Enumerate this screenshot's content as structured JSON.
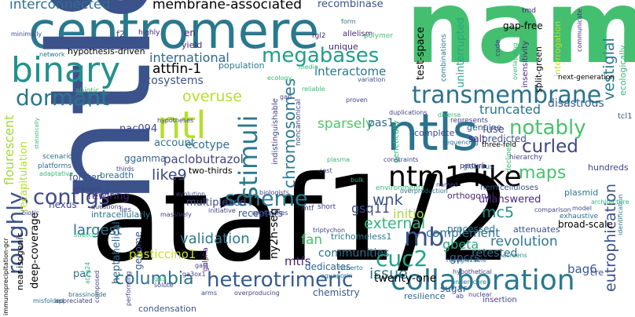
{
  "background": "#ffffff",
  "palette": {
    "navy": "#3b528b",
    "purple": "#482475",
    "indigo": "#414487",
    "teal": "#21918c",
    "bluegreen": "#2a788e",
    "green": "#35b779",
    "lime": "#90d743",
    "yellow": "#c8e020"
  },
  "words": [
    {
      "id": "nam",
      "text": "nam",
      "color": "#44bf70"
    },
    {
      "id": "centromere",
      "text": "centromere",
      "color": "#2a788e"
    },
    {
      "id": "ntl8",
      "text": "ntl8",
      "color": "#3b528b"
    },
    {
      "id": "ataf12",
      "text": "ataf1/2",
      "color": "#22a884"
    },
    {
      "id": "binary",
      "text": "binary",
      "color": "#21918c"
    },
    {
      "id": "ntls",
      "text": "ntls",
      "color": "#2c728e"
    },
    {
      "id": "ntl",
      "text": "ntl",
      "color": "#b5de2b"
    },
    {
      "id": "transmembrane",
      "text": "transmembrane",
      "color": "#2c728e"
    },
    {
      "id": "ntm1like",
      "text": "ntm1-like",
      "color": "#38598c"
    },
    {
      "id": "megabases",
      "text": "megabases",
      "color": "#1f9e89"
    },
    {
      "id": "dormant",
      "text": "dormant",
      "color": "#2a788e"
    },
    {
      "id": "interconnected",
      "text": "interconnected",
      "color": "#2c728e"
    },
    {
      "id": "membraneassociated",
      "text": "membrane-associated",
      "color": "#355f8d"
    },
    {
      "id": "recombinase",
      "text": "recombinase",
      "color": "#3b528b"
    },
    {
      "id": "international",
      "text": "international",
      "color": "#31688e"
    },
    {
      "id": "attfin1",
      "text": "attfin-1",
      "color": "#a8db34"
    },
    {
      "id": "overuse",
      "text": "overuse",
      "color": "#b5de2b"
    },
    {
      "id": "stimuli",
      "text": "stimuli",
      "color": "#2a788e"
    },
    {
      "id": "scheme",
      "text": "scheme",
      "color": "#287c8e"
    },
    {
      "id": "contigs",
      "text": "contigs",
      "color": "#3e4a89"
    },
    {
      "id": "roughly",
      "text": "roughly",
      "color": "#3b528b"
    },
    {
      "id": "notably",
      "text": "notably",
      "color": "#48c16e"
    },
    {
      "id": "curled",
      "text": "curled",
      "color": "#414487"
    },
    {
      "id": "truncated",
      "text": "truncated",
      "color": "#2c728e"
    },
    {
      "id": "disastrous",
      "text": "disastrous",
      "color": "#355f8d"
    },
    {
      "id": "sparsely",
      "text": "sparsely",
      "color": "#52c569"
    },
    {
      "id": "interactome",
      "text": "interactome",
      "color": "#2a788e"
    },
    {
      "id": "ecosystems",
      "text": "ecosystems",
      "color": "#3b528b"
    },
    {
      "id": "fkbp",
      "text": "fkbp",
      "color": "#34618d"
    },
    {
      "id": "chromosomes",
      "text": "chromosomes",
      "color": "#2a788e"
    },
    {
      "id": "maps",
      "text": "maps",
      "color": "#48c16e"
    },
    {
      "id": "collaboration",
      "text": "collaboration",
      "color": "#2a788e"
    },
    {
      "id": "heterotrimeric",
      "text": "heterotrimeric",
      "color": "#38598c"
    },
    {
      "id": "columbia",
      "text": "columbia",
      "color": "#2c728e"
    },
    {
      "id": "cuc2",
      "text": "cuc2",
      "color": "#20a386"
    },
    {
      "id": "mb",
      "text": "mb",
      "color": "#3b528b"
    },
    {
      "id": "like9",
      "text": "like9",
      "color": "#3e4a89"
    },
    {
      "id": "validation",
      "text": "validation",
      "color": "#2a788e"
    },
    {
      "id": "paclobutrazol",
      "text": "paclobutrazol",
      "color": "#414487"
    },
    {
      "id": "ecotype",
      "text": "ecotype",
      "color": "#2e6f8e"
    },
    {
      "id": "account",
      "text": "account",
      "color": "#2c728e"
    },
    {
      "id": "flourescent",
      "text": "flourescent",
      "color": "#a2da37"
    },
    {
      "id": "nac094",
      "text": "nac094",
      "color": "#3e4a89"
    },
    {
      "id": "ggamma",
      "text": "ggamma",
      "color": "#34618d"
    },
    {
      "id": "largest",
      "text": "largest",
      "color": "#2e6f8e"
    },
    {
      "id": "wnk",
      "text": "wnk",
      "color": "#3b528b"
    },
    {
      "id": "initio",
      "text": "initio",
      "color": "#a5db36"
    },
    {
      "id": "external",
      "text": "external",
      "color": "#31b57b"
    },
    {
      "id": "complement",
      "text": "complement",
      "color": "#2c728e"
    },
    {
      "id": "unanswered",
      "text": "unanswered",
      "color": "#482878"
    },
    {
      "id": "mc5",
      "text": "mc5",
      "color": "#21918c"
    },
    {
      "id": "revolution",
      "text": "revolution",
      "color": "#2a788e"
    },
    {
      "id": "gbeta",
      "text": "gbeta",
      "color": "#22a884"
    },
    {
      "id": "retested",
      "text": "retested",
      "color": "#2c728e"
    },
    {
      "id": "issue",
      "text": "issue",
      "color": "#2a788e"
    },
    {
      "id": "gpcrs",
      "text": "gpcrs",
      "color": "#38598c"
    },
    {
      "id": "twentyone",
      "text": "twenty-one",
      "color": "#3e4a89"
    },
    {
      "id": "communities",
      "text": "communities",
      "color": "#2e6f8e"
    },
    {
      "id": "mtfs",
      "text": "mtfs",
      "color": "#482475"
    },
    {
      "id": "dedicates",
      "text": "dedicates",
      "color": "#31688e"
    },
    {
      "id": "fan",
      "text": "fan",
      "color": "#48c16e"
    },
    {
      "id": "gsq11",
      "text": "gsq11",
      "color": "#3e4a89"
    },
    {
      "id": "pasticcino1",
      "text": "pasticcino1",
      "color": "#c8e020"
    },
    {
      "id": "deepcoverage",
      "text": "deep-coverage",
      "color": "#3b528b"
    },
    {
      "id": "heptahelical",
      "text": "heptahelical",
      "color": "#31688e"
    },
    {
      "id": "genome",
      "text": "genome",
      "color": "#3b528b"
    },
    {
      "id": "eutrophication",
      "text": "eutrophication",
      "color": "#3b528b"
    },
    {
      "id": "vestigial",
      "text": "vestigial",
      "color": "#2a788e"
    },
    {
      "id": "bag6",
      "text": "bag6",
      "color": "#38598c"
    },
    {
      "id": "condensation",
      "text": "condensation",
      "color": "#3b528b"
    },
    {
      "id": "uninterrupted",
      "text": "uninterrupted",
      "color": "#22a884"
    },
    {
      "id": "testspace",
      "text": "test-space",
      "color": "#3e4a89"
    },
    {
      "id": "unique",
      "text": "unique",
      "color": "#482475"
    },
    {
      "id": "gapfree",
      "text": "gap-free",
      "color": "#3b528b"
    },
    {
      "id": "hypothesisdriven",
      "text": "hypothesis-driven",
      "color": "#3b528b"
    },
    {
      "id": "represents",
      "text": "represents",
      "color": "#414487"
    },
    {
      "id": "interrogation",
      "text": "interrogation",
      "color": "#bddf26"
    },
    {
      "id": "splitgreen",
      "text": "split-green",
      "color": "#1fa088"
    },
    {
      "id": "insensitivity",
      "text": "insensitivity",
      "color": "#482878"
    },
    {
      "id": "nextgeneration",
      "text": "next-generation",
      "color": "#414487"
    },
    {
      "id": "ecologically",
      "text": "ecologically",
      "color": "#35b779"
    },
    {
      "id": "tcl1",
      "text": "tcl1",
      "color": "#3b528b"
    },
    {
      "id": "pas1",
      "text": "pas1",
      "color": "#31688e"
    },
    {
      "id": "genuine",
      "text": "genuine",
      "color": "#38598c"
    },
    {
      "id": "salt",
      "text": "salt",
      "color": "#482475"
    },
    {
      "id": "fuse",
      "text": "fuse",
      "color": "#3e4a89"
    },
    {
      "id": "complete",
      "text": "complete",
      "color": "#414487"
    },
    {
      "id": "predicted",
      "text": "predicted",
      "color": "#3b528b"
    },
    {
      "id": "genetically",
      "text": "genetically",
      "color": "#35b779"
    },
    {
      "id": "plasmid",
      "text": "plasmid",
      "color": "#2a788e"
    },
    {
      "id": "hundreds",
      "text": "hundreds",
      "color": "#414487"
    },
    {
      "id": "orthogonal",
      "text": "orthogonal",
      "color": "#482878"
    },
    {
      "id": "hemicelluloses",
      "text": "hemicelluloses",
      "color": "#3b528b"
    },
    {
      "id": "trichomeless1",
      "text": "trichomeless1",
      "color": "#2a788e"
    },
    {
      "id": "processed",
      "text": "processed",
      "color": "#2c728e"
    },
    {
      "id": "attenuates",
      "text": "attenuates",
      "color": "#3b528b"
    },
    {
      "id": "broadscale",
      "text": "broad-scale",
      "color": "#3e4a89"
    },
    {
      "id": "resilience",
      "text": "resilience",
      "color": "#31688e"
    },
    {
      "id": "sugar",
      "text": "sugar",
      "color": "#38598c"
    },
    {
      "id": "insertion",
      "text": "insertion",
      "color": "#414487"
    },
    {
      "id": "chemistry",
      "text": "chemistry",
      "color": "#38598c"
    },
    {
      "id": "multiplexed",
      "text": "multiplexed",
      "color": "#3e4a89"
    },
    {
      "id": "receptors",
      "text": "receptors",
      "color": "#3b528b"
    },
    {
      "id": "nexus",
      "text": "nexus",
      "color": "#414487"
    },
    {
      "id": "caspase",
      "text": "caspase",
      "color": "#3b528b"
    },
    {
      "id": "breadth",
      "text": "breadth",
      "color": "#2e6f8e"
    },
    {
      "id": "forster",
      "text": "forster",
      "color": "#3b528b"
    },
    {
      "id": "rewiring",
      "text": "rewiring",
      "color": "#482878"
    },
    {
      "id": "intracellularly",
      "text": "intracellularly",
      "color": "#2c728e"
    },
    {
      "id": "recapitulation",
      "text": "recapitulation",
      "color": "#b5de2b"
    },
    {
      "id": "nearisogenic",
      "text": "near-isogenic",
      "color": "#2e6f8e"
    },
    {
      "id": "immunoprecip",
      "text": "immunoprecipitation-gcr",
      "color": "#3e4a89"
    },
    {
      "id": "pac",
      "text": "pac",
      "color": "#2c728e"
    },
    {
      "id": "abiotic",
      "text": "abiotic",
      "color": "#35b779"
    },
    {
      "id": "network",
      "text": "network",
      "color": "#2e6f8e"
    },
    {
      "id": "en",
      "text": "en",
      "color": "#482475"
    },
    {
      "id": "yield",
      "text": "yield",
      "color": "#482878"
    },
    {
      "id": "f2",
      "text": "f2",
      "color": "#414487"
    },
    {
      "id": "population",
      "text": "population",
      "color": "#2a788e"
    },
    {
      "id": "ecology",
      "text": "ecology",
      "color": "#35b779"
    },
    {
      "id": "highly",
      "text": "highly",
      "color": "#482475"
    },
    {
      "id": "minimally",
      "text": "minimally",
      "color": "#3e4a89"
    },
    {
      "id": "tmd",
      "text": "tmd",
      "color": "#482475"
    },
    {
      "id": "form",
      "text": "form",
      "color": "#2a788e"
    },
    {
      "id": "allelism",
      "text": "allelism",
      "color": "#482878"
    },
    {
      "id": "polymer",
      "text": "polymer",
      "color": "#48c16e"
    },
    {
      "id": "rgl2",
      "text": "rgl2",
      "color": "#482475"
    },
    {
      "id": "combinations",
      "text": "combinations",
      "color": "#2a788e"
    },
    {
      "id": "code",
      "text": "code",
      "color": "#414487"
    },
    {
      "id": "communicate",
      "text": "communicate",
      "color": "#482878"
    },
    {
      "id": "variation",
      "text": "variation",
      "color": "#3b528b"
    },
    {
      "id": "overlapping",
      "text": "overlapping",
      "color": "#35b779"
    },
    {
      "id": "duplications",
      "text": "duplications",
      "color": "#414487"
    },
    {
      "id": "proven",
      "text": "proven",
      "color": "#414487"
    },
    {
      "id": "diverse",
      "text": "diverse",
      "color": "#35b779"
    },
    {
      "id": "sequencing",
      "text": "sequencing",
      "color": "#2e6f8e"
    },
    {
      "id": "threefold",
      "text": "three-fold",
      "color": "#b5de2b"
    },
    {
      "id": "hierarchy",
      "text": "hierarchy",
      "color": "#414487"
    },
    {
      "id": "glabrous",
      "text": "glabrous",
      "color": "#2e6f8e"
    },
    {
      "id": "declines",
      "text": "declines",
      "color": "#35b779"
    },
    {
      "id": "named",
      "text": "named",
      "color": "#414487"
    },
    {
      "id": "overproduction",
      "text": "overproduction",
      "color": "#2e6f8e"
    },
    {
      "id": "architecture",
      "text": "architecture",
      "color": "#35b779"
    },
    {
      "id": "perturb",
      "text": "perturb",
      "color": "#482475"
    },
    {
      "id": "constraints",
      "text": "constraints",
      "color": "#414487"
    },
    {
      "id": "plasma",
      "text": "plasma",
      "color": "#35b779"
    },
    {
      "id": "cost",
      "text": "cost",
      "color": "#414487"
    },
    {
      "id": "environments",
      "text": "environments",
      "color": "#35b779"
    },
    {
      "id": "comparison",
      "text": "comparison",
      "color": "#414487"
    },
    {
      "id": "model",
      "text": "model",
      "color": "#3e4a89"
    },
    {
      "id": "exhaustive",
      "text": "exhaustive",
      "color": "#2e6f8e"
    },
    {
      "id": "identification",
      "text": "identification",
      "color": "#2a788e"
    },
    {
      "id": "screens",
      "text": "screens",
      "color": "#21918c"
    },
    {
      "id": "recognizable",
      "text": "recognizable",
      "color": "#2e6f8e"
    },
    {
      "id": "cre",
      "text": "cre",
      "color": "#414487"
    },
    {
      "id": "hypothetical",
      "text": "hypothetical",
      "color": "#414487"
    },
    {
      "id": "aquaporin",
      "text": "aquaporin",
      "color": "#2e6f8e"
    },
    {
      "id": "ab",
      "text": "ab",
      "color": "#414487"
    },
    {
      "id": "nuclear",
      "text": "nuclear",
      "color": "#414487"
    },
    {
      "id": "underscore",
      "text": "underscore",
      "color": "#2e6f8e"
    },
    {
      "id": "hitherto",
      "text": "hitherto",
      "color": "#2e6f8e"
    },
    {
      "id": "overproducing",
      "text": "overproducing",
      "color": "#414487"
    },
    {
      "id": "golpha",
      "text": "golpha",
      "color": "#482475"
    },
    {
      "id": "gal4",
      "text": "gal4",
      "color": "#414487"
    },
    {
      "id": "ga3ox1",
      "text": "ga3ox1",
      "color": "#414487"
    },
    {
      "id": "ga3",
      "text": "ga3",
      "color": "#35b779"
    },
    {
      "id": "arms",
      "text": "arms",
      "color": "#414487"
    },
    {
      "id": "solute",
      "text": "solute",
      "color": "#414487"
    },
    {
      "id": "brassinolide",
      "text": "brassinolide",
      "color": "#2e6f8e"
    },
    {
      "id": "performing",
      "text": "performing",
      "color": "#414487"
    },
    {
      "id": "composed",
      "text": "composed",
      "color": "#414487"
    },
    {
      "id": "appreciated",
      "text": "appreciated",
      "color": "#414487"
    },
    {
      "id": "misfolded",
      "text": "misfolded",
      "color": "#2e6f8e"
    },
    {
      "id": "biologists",
      "text": "biologists",
      "color": "#414487"
    },
    {
      "id": "approaches",
      "text": "approaches",
      "color": "#414487"
    },
    {
      "id": "initiative",
      "text": "initiative",
      "color": "#414487"
    },
    {
      "id": "mtf",
      "text": "mtf",
      "color": "#414487"
    },
    {
      "id": "short",
      "text": "short",
      "color": "#414487"
    },
    {
      "id": "triptychon",
      "text": "triptychon",
      "color": "#414487"
    },
    {
      "id": "questions",
      "text": "questions",
      "color": "#414487"
    },
    {
      "id": "lies",
      "text": "lies",
      "color": "#414487"
    },
    {
      "id": "biotic",
      "text": "biotic",
      "color": "#414487"
    },
    {
      "id": "arranged",
      "text": "arranged",
      "color": "#414487"
    },
    {
      "id": "evolution",
      "text": "evolution",
      "color": "#414487"
    },
    {
      "id": "scenario",
      "text": "scenario",
      "color": "#2e6f8e"
    },
    {
      "id": "platforms",
      "text": "platforms",
      "color": "#2e6f8e"
    },
    {
      "id": "adaptative",
      "text": "adaptative",
      "color": "#35b779"
    },
    {
      "id": "statistically",
      "text": "statistically",
      "color": "#35b779"
    },
    {
      "id": "thirds",
      "text": "thirds",
      "color": "#414487"
    },
    {
      "id": "hypotheses",
      "text": "hypotheses",
      "color": "#414487"
    },
    {
      "id": "twothirds",
      "text": "two-thirds",
      "color": "#414487"
    },
    {
      "id": "noncanonical",
      "text": "noncanonical",
      "color": "#414487"
    },
    {
      "id": "indistinguishable",
      "text": "indistinguishable",
      "color": "#414487"
    },
    {
      "id": "reliable",
      "text": "reliable",
      "color": "#35b779"
    },
    {
      "id": "gap",
      "text": "gap",
      "color": "#414487"
    },
    {
      "id": "media",
      "text": "media",
      "color": "#35b779"
    },
    {
      "id": "massively",
      "text": "massively",
      "color": "#414487"
    },
    {
      "id": "stretch",
      "text": "stretch",
      "color": "#35b779"
    },
    {
      "id": "at2g24",
      "text": "at2g24",
      "color": "#35b779"
    },
    {
      "id": "bulk",
      "text": "bulk",
      "color": "#35b779"
    },
    {
      "id": "ny2hseq",
      "text": "ny2h-seq",
      "color": "#2e6f8e"
    }
  ]
}
